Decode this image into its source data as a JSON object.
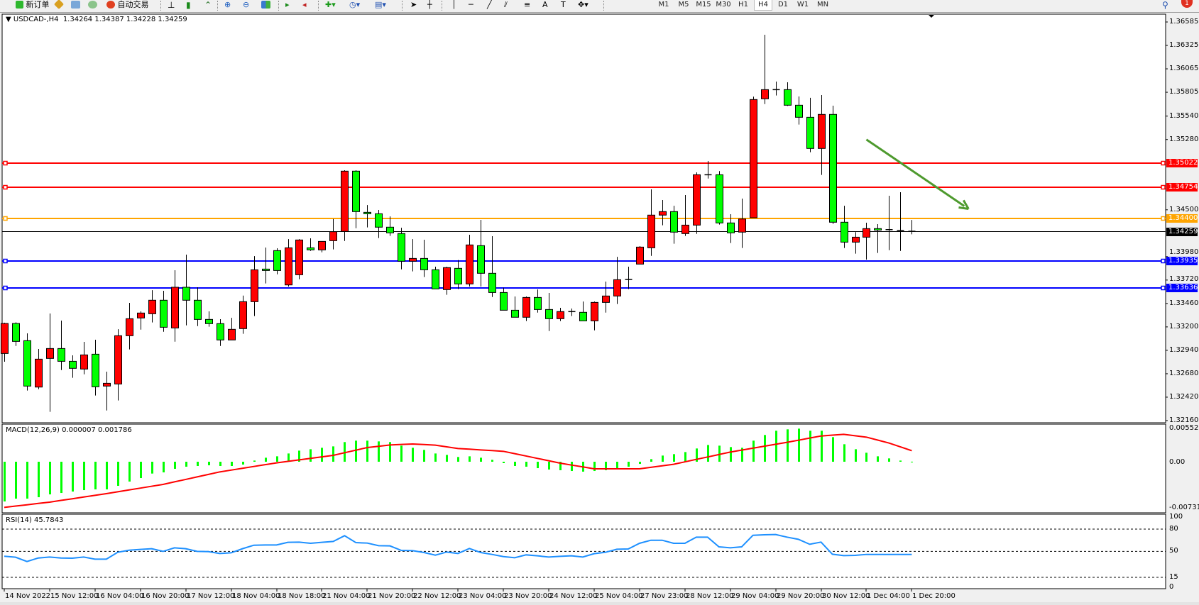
{
  "toolbar": {
    "new_order_label": "新订单",
    "auto_trading_label": "自动交易",
    "timeframes": [
      "M1",
      "M5",
      "M15",
      "M30",
      "H1",
      "H4",
      "D1",
      "W1",
      "MN"
    ],
    "selected_timeframe": "H4",
    "notification_count": "1"
  },
  "chart": {
    "symbol": "USDCAD-,H4",
    "ohlc_text": "1.34264 1.34387 1.34228 1.34259",
    "bull_color": "#ff0000",
    "bear_color": "#00ff00"
  },
  "chart_data": [
    {
      "type": "candlestick",
      "title": "USDCAD-,H4",
      "ylim": [
        1.3216,
        1.36585
      ],
      "y_ticks": [
        "1.36585",
        "1.36325",
        "1.36065",
        "1.35805",
        "1.35540",
        "1.35280",
        "1.34500",
        "1.33980",
        "1.33720",
        "1.33460",
        "1.33200",
        "1.32940",
        "1.32680",
        "1.32420",
        "1.32160"
      ],
      "x_tick_labels": [
        "14 Nov 2022",
        "15 Nov 12:00",
        "16 Nov 04:00",
        "16 Nov 20:00",
        "17 Nov 12:00",
        "18 Nov 04:00",
        "18 Nov 18:00",
        "21 Nov 04:00",
        "21 Nov 20:00",
        "22 Nov 12:00",
        "23 Nov 04:00",
        "23 Nov 20:00",
        "24 Nov 12:00",
        "25 Nov 04:00",
        "27 Nov 23:00",
        "28 Nov 12:00",
        "29 Nov 04:00",
        "29 Nov 20:00",
        "30 Nov 12:00",
        "1 Dec 04:00",
        "1 Dec 20:00"
      ],
      "ohlc": [
        [
          1.32905,
          1.33246,
          1.32813,
          1.33238
        ],
        [
          1.33238,
          1.33251,
          1.32989,
          1.33039
        ],
        [
          1.33047,
          1.33128,
          1.32493,
          1.32543
        ],
        [
          1.32532,
          1.32955,
          1.32508,
          1.32842
        ],
        [
          1.3285,
          1.33349,
          1.32257,
          1.3296
        ],
        [
          1.3296,
          1.3327,
          1.32721,
          1.32818
        ],
        [
          1.32818,
          1.32884,
          1.32635,
          1.3274
        ],
        [
          1.32732,
          1.33034,
          1.32674,
          1.32889
        ],
        [
          1.32897,
          1.33057,
          1.32438,
          1.32535
        ],
        [
          1.32543,
          1.32703,
          1.32272,
          1.32574
        ],
        [
          1.32566,
          1.33175,
          1.32383,
          1.33102
        ],
        [
          1.33102,
          1.33467,
          1.3295,
          1.33291
        ],
        [
          1.33299,
          1.33372,
          1.3317,
          1.33354
        ],
        [
          1.33346,
          1.33608,
          1.33249,
          1.33496
        ],
        [
          1.33496,
          1.33601,
          1.33146,
          1.33196
        ],
        [
          1.33188,
          1.33829,
          1.33036,
          1.3364
        ],
        [
          1.3364,
          1.34002,
          1.33217,
          1.33496
        ],
        [
          1.33496,
          1.3364,
          1.33209,
          1.33283
        ],
        [
          1.33283,
          1.33372,
          1.33202,
          1.33236
        ],
        [
          1.33236,
          1.33286,
          1.32989,
          1.33055
        ],
        [
          1.33055,
          1.33301,
          1.33055,
          1.33173
        ],
        [
          1.33181,
          1.33548,
          1.33123,
          1.3348
        ],
        [
          1.3348,
          1.33986,
          1.3332,
          1.33834
        ],
        [
          1.33842,
          1.34081,
          1.33682,
          1.33826
        ],
        [
          1.34047,
          1.34073,
          1.33784,
          1.33826
        ],
        [
          1.33666,
          1.34175,
          1.33648,
          1.34078
        ],
        [
          1.33779,
          1.34175,
          1.33729,
          1.34165
        ],
        [
          1.34078,
          1.34183,
          1.34044,
          1.34055
        ],
        [
          1.34055,
          1.34149,
          1.34028,
          1.34149
        ],
        [
          1.34157,
          1.34398,
          1.3406,
          1.34257
        ],
        [
          1.3426,
          1.34939,
          1.34154,
          1.34929
        ],
        [
          1.34929,
          1.34939,
          1.34296,
          1.3448
        ],
        [
          1.34472,
          1.34553,
          1.34304,
          1.34456
        ],
        [
          1.34456,
          1.34498,
          1.34186,
          1.34307
        ],
        [
          1.34307,
          1.34427,
          1.3421,
          1.34244
        ],
        [
          1.34236,
          1.34301,
          1.33839,
          1.33929
        ],
        [
          1.33929,
          1.34175,
          1.33816,
          1.3396
        ],
        [
          1.3396,
          1.34168,
          1.33753,
          1.33834
        ],
        [
          1.33834,
          1.33868,
          1.33622,
          1.33622
        ],
        [
          1.33614,
          1.33868,
          1.33556,
          1.33858
        ],
        [
          1.3385,
          1.33942,
          1.33619,
          1.33677
        ],
        [
          1.33677,
          1.34223,
          1.33648,
          1.3411
        ],
        [
          1.34102,
          1.34388,
          1.33648,
          1.33795
        ],
        [
          1.33795,
          1.34207,
          1.33532,
          1.33582
        ],
        [
          1.33582,
          1.33635,
          1.33385,
          1.33385
        ],
        [
          1.33385,
          1.33538,
          1.33307,
          1.33307
        ],
        [
          1.33307,
          1.33538,
          1.33265,
          1.33527
        ],
        [
          1.33527,
          1.33616,
          1.33359,
          1.33393
        ],
        [
          1.33393,
          1.33577,
          1.33154,
          1.33291
        ],
        [
          1.33291,
          1.33412,
          1.33265,
          1.3337
        ],
        [
          1.3337,
          1.33404,
          1.3332,
          1.3337
        ],
        [
          1.33362,
          1.33482,
          1.33267,
          1.33267
        ],
        [
          1.33267,
          1.33482,
          1.33162,
          1.33472
        ],
        [
          1.33472,
          1.33703,
          1.33359,
          1.33543
        ],
        [
          1.33543,
          1.33978,
          1.33454,
          1.33724
        ],
        [
          1.33724,
          1.33868,
          1.33619,
          1.33729
        ],
        [
          1.33897,
          1.34097,
          1.33897,
          1.34086
        ],
        [
          1.34078,
          1.34727,
          1.33989,
          1.34441
        ],
        [
          1.34441,
          1.34609,
          1.34328,
          1.3448
        ],
        [
          1.3448,
          1.34545,
          1.34123,
          1.34252
        ],
        [
          1.34236,
          1.34664,
          1.3421,
          1.3433
        ],
        [
          1.3433,
          1.34916,
          1.34233,
          1.34889
        ],
        [
          1.34889,
          1.35042,
          1.34847,
          1.34889
        ],
        [
          1.34889,
          1.34929,
          1.34336,
          1.34354
        ],
        [
          1.34354,
          1.34451,
          1.34131,
          1.34244
        ],
        [
          1.34252,
          1.34624,
          1.34076,
          1.34398
        ],
        [
          1.34412,
          1.35756,
          1.34412,
          1.35724
        ],
        [
          1.35732,
          1.36443,
          1.35674,
          1.35834
        ],
        [
          1.35834,
          1.35924,
          1.35769,
          1.35834
        ],
        [
          1.35834,
          1.35916,
          1.35653,
          1.35661
        ],
        [
          1.35661,
          1.35758,
          1.35446,
          1.35527
        ],
        [
          1.35527,
          1.35743,
          1.35139,
          1.35181
        ],
        [
          1.35181,
          1.35774,
          1.34887,
          1.35559
        ],
        [
          1.35559,
          1.35656,
          1.34343,
          1.34362
        ],
        [
          1.34362,
          1.34545,
          1.34076,
          1.34141
        ],
        [
          1.34141,
          1.34252,
          1.34013,
          1.34196
        ],
        [
          1.34196,
          1.34357,
          1.33947,
          1.34291
        ],
        [
          1.34291,
          1.34341,
          1.34021,
          1.34275
        ],
        [
          1.3428,
          1.34656,
          1.34052,
          1.3428
        ],
        [
          1.3427,
          1.34695,
          1.34044,
          1.3427
        ],
        [
          1.34264,
          1.34387,
          1.34228,
          1.34259
        ]
      ],
      "levels": [
        {
          "label": "1.35022",
          "value": 1.35022,
          "color": "#ff0000"
        },
        {
          "label": "1.34754",
          "value": 1.34754,
          "color": "#ff0000"
        },
        {
          "label": "1.34400",
          "value": 1.344,
          "color": "#ffa500"
        },
        {
          "label": "1.33935",
          "value": 1.33935,
          "color": "#0000ff"
        },
        {
          "label": "1.33636",
          "value": 1.33636,
          "color": "#0000ff"
        }
      ],
      "current_price": {
        "label": "1.34259",
        "value": 1.34259,
        "color": "#000000"
      },
      "trend_arrow": {
        "color": "#4e9a2e",
        "direction": "down",
        "from": {
          "bar": 77,
          "price": 1.3528
        },
        "to": {
          "bar": 86,
          "price": 1.3451
        }
      }
    },
    {
      "type": "bar+line",
      "title": "MACD(12,26,9) 0.000007 0.001786",
      "ylim": [
        -0.007313,
        0.005526
      ],
      "y_ticks": [
        "0.005526",
        "0.00",
        "-0.007313"
      ],
      "histogram_color": "#00ff00",
      "signal_color": "#ff0000",
      "histogram": [
        -0.00645,
        -0.00599,
        -0.00599,
        -0.00576,
        -0.0053,
        -0.00507,
        -0.00484,
        -0.00461,
        -0.00449,
        -0.00449,
        -0.00391,
        -0.00322,
        -0.00265,
        -0.00192,
        -0.00173,
        -0.00115,
        -0.00081,
        -0.00069,
        -0.00058,
        -0.00069,
        -0.00069,
        -0.00046,
        0.00019,
        0.00065,
        0.00088,
        0.00134,
        0.0018,
        0.00203,
        0.00226,
        0.00249,
        0.00319,
        0.00342,
        0.00342,
        0.0033,
        0.00319,
        0.00261,
        0.00226,
        0.00192,
        0.00134,
        0.00111,
        0.00077,
        0.00088,
        0.00065,
        0.00031,
        -0.00023,
        -0.00069,
        -0.00081,
        -0.00104,
        -0.00127,
        -0.00138,
        -0.0015,
        -0.00161,
        -0.0015,
        -0.00138,
        -0.00104,
        -0.00081,
        -0.00035,
        0.00042,
        0.001,
        0.00123,
        0.00157,
        0.00215,
        0.00272,
        0.00261,
        0.00238,
        0.00226,
        0.00342,
        0.00434,
        0.00503,
        0.00526,
        0.00537,
        0.00503,
        0.00503,
        0.00399,
        0.00284,
        0.00203,
        0.00146,
        0.00088,
        0.00054,
        0.00019,
        7e-06
      ],
      "signal": [
        -0.00741,
        -0.0072,
        -0.00699,
        -0.00677,
        -0.00656,
        -0.00628,
        -0.00601,
        -0.00573,
        -0.00546,
        -0.00518,
        -0.00488,
        -0.00458,
        -0.00428,
        -0.00398,
        -0.00368,
        -0.00327,
        -0.00287,
        -0.00246,
        -0.00206,
        -0.00165,
        -0.00136,
        -0.00107,
        -0.00077,
        -0.00048,
        -0.00019,
        6e-05,
        0.0003,
        0.00055,
        0.00079,
        0.00104,
        0.00146,
        0.00188,
        0.0023,
        0.00251,
        0.00272,
        0.0028,
        0.00288,
        0.00279,
        0.00269,
        0.00242,
        0.00215,
        0.00204,
        0.00192,
        0.00181,
        0.00169,
        0.00131,
        0.00093,
        0.00054,
        0.00016,
        -0.00023,
        -0.00054,
        -0.00084,
        -0.00115,
        -0.00115,
        -0.00115,
        -0.00115,
        -0.00115,
        -0.00091,
        -0.00066,
        -0.00042,
        -2e-05,
        0.00038,
        0.00077,
        0.00117,
        0.00157,
        0.00189,
        0.0022,
        0.00252,
        0.00283,
        0.00315,
        0.00349,
        0.00384,
        0.00418,
        0.00432,
        0.00445,
        0.00422,
        0.00399,
        0.00351,
        0.00303,
        0.00241,
        0.001786
      ]
    },
    {
      "type": "line",
      "title": "RSI(14) 45.7843",
      "ylim": [
        0,
        100
      ],
      "y_ticks": [
        "100",
        "80",
        "50",
        "15",
        "0"
      ],
      "levels": [
        80,
        50,
        15
      ],
      "color": "#1e90ff",
      "values": [
        43.4,
        42.1,
        36.3,
        41.1,
        42.4,
        41.1,
        40.8,
        42.4,
        39.5,
        39.5,
        48.8,
        51.6,
        52.6,
        53.6,
        50.0,
        54.8,
        53.6,
        50.0,
        49.7,
        47.2,
        48.1,
        53.6,
        58.3,
        58.6,
        58.6,
        62.2,
        62.5,
        60.9,
        62.2,
        63.4,
        71.1,
        61.8,
        61.2,
        57.7,
        57.4,
        51.3,
        51.0,
        48.5,
        44.9,
        49.1,
        47.2,
        53.9,
        48.5,
        45.9,
        43.0,
        41.4,
        45.3,
        44.0,
        42.4,
        43.3,
        44.0,
        42.4,
        46.9,
        48.8,
        52.9,
        53.2,
        60.9,
        65.0,
        65.0,
        60.9,
        60.9,
        69.2,
        69.2,
        56.1,
        54.8,
        56.1,
        71.7,
        72.4,
        72.7,
        69.2,
        66.3,
        59.6,
        62.5,
        46.2,
        44.3,
        44.6,
        45.9,
        45.9,
        45.9,
        45.9,
        45.7843
      ]
    }
  ]
}
